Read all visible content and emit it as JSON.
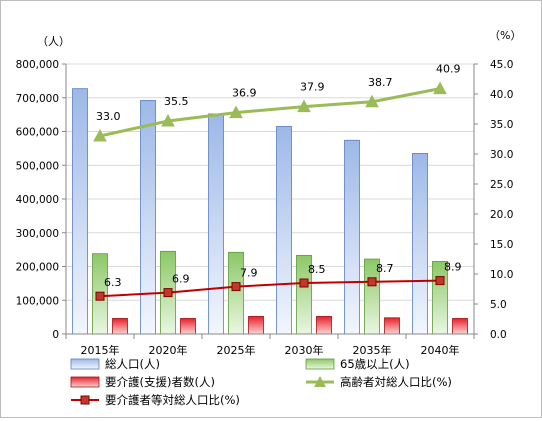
{
  "chart_data": {
    "type": "bar",
    "categories": [
      "2015年",
      "2020年",
      "2025年",
      "2030年",
      "2035年",
      "2040年"
    ],
    "left_axis": {
      "unit": "（人）",
      "min": 0,
      "max": 800000,
      "step": 100000,
      "tick_labels": [
        "0",
        "100,000",
        "200,000",
        "300,000",
        "400,000",
        "500,000",
        "600,000",
        "700,000",
        "800,000"
      ]
    },
    "right_axis": {
      "unit": "（%）",
      "min": 0,
      "max": 45,
      "step": 5,
      "tick_labels": [
        "0.0",
        "5.0",
        "10.0",
        "15.0",
        "20.0",
        "25.0",
        "30.0",
        "35.0",
        "40.0",
        "45.0"
      ]
    },
    "series": [
      {
        "name": "総人口(人)",
        "kind": "bar",
        "axis": "left",
        "color": "#9db8e8",
        "values": [
          727000,
          692000,
          652000,
          615000,
          574000,
          535000
        ]
      },
      {
        "name": "65歳以上(人)",
        "kind": "bar",
        "axis": "left",
        "color": "#8cc866",
        "values": [
          238000,
          245000,
          242000,
          233000,
          222000,
          215000
        ]
      },
      {
        "name": "要介護(支援)者数(人)",
        "kind": "bar",
        "axis": "left",
        "color": "#e8202a",
        "values": [
          46000,
          46000,
          52000,
          52000,
          48000,
          46000
        ]
      },
      {
        "name": "高齢者対総人口比(%)",
        "kind": "line",
        "axis": "right",
        "color": "#9bbb59",
        "marker": "triangle",
        "values": [
          33.0,
          35.5,
          36.9,
          37.9,
          38.7,
          40.9
        ],
        "labels": [
          "33.0",
          "35.5",
          "36.9",
          "37.9",
          "38.7",
          "40.9"
        ]
      },
      {
        "name": "要介護者等対総人口比(%)",
        "kind": "line",
        "axis": "right",
        "color": "#c00000",
        "marker": "square",
        "values": [
          6.3,
          6.9,
          7.9,
          8.5,
          8.7,
          8.9
        ],
        "labels": [
          "6.3",
          "6.9",
          "7.9",
          "8.5",
          "8.7",
          "8.9"
        ]
      }
    ],
    "legend_position": "bottom"
  }
}
